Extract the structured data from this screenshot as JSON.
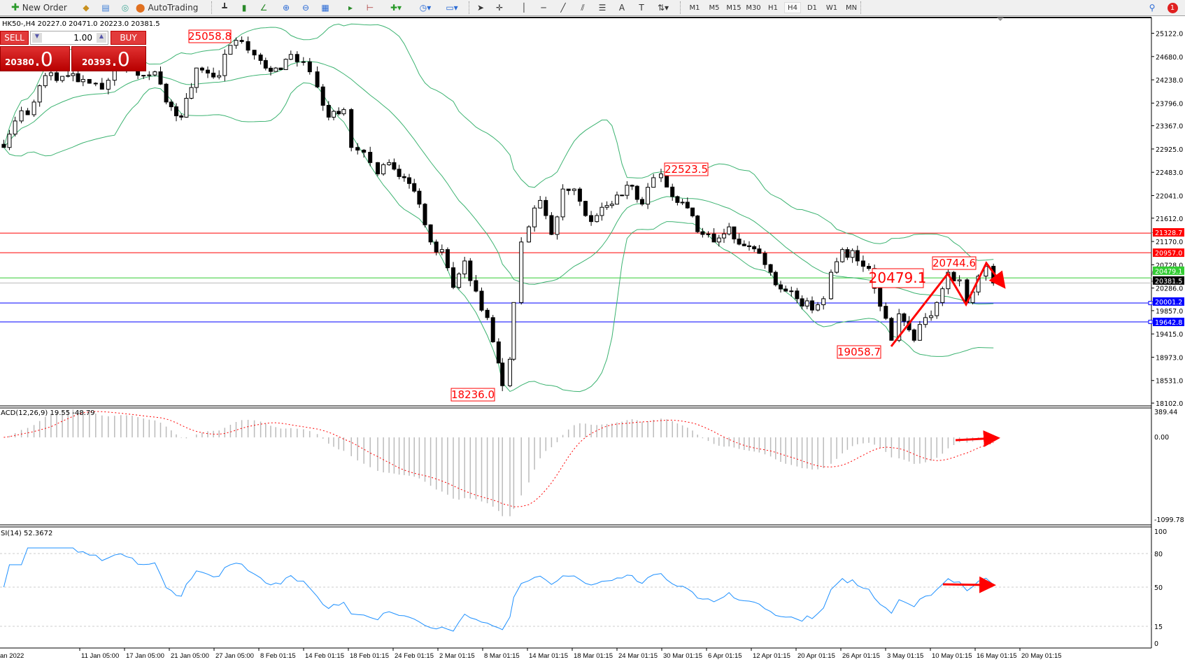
{
  "toolbar": {
    "new_order": "New Order",
    "autotrading": "AutoTrading",
    "timeframes": [
      "M1",
      "M5",
      "M15",
      "M30",
      "H1",
      "H4",
      "D1",
      "W1",
      "MN"
    ],
    "active_timeframe": "H4",
    "notification_count": "1"
  },
  "trade_panel": {
    "sell": "SELL",
    "buy": "BUY",
    "lot": "1.00",
    "sell_price_small": "20380",
    "sell_price_big": ".0",
    "buy_price_small": "20393",
    "buy_price_big": ".0"
  },
  "chart": {
    "symbol_info": "HK50-,H4  20227.0 20471.0 20223.0 20381.5",
    "price_ticks": [
      "25122.0",
      "24680.0",
      "24238.0",
      "23796.0",
      "23367.0",
      "22925.0",
      "22483.0",
      "22041.0",
      "21612.0",
      "21170.0",
      "20728.0",
      "20286.0",
      "19857.0",
      "19415.0",
      "18973.0",
      "18531.0",
      "18102.0"
    ],
    "closes": [
      22954,
      23457,
      23816,
      24318,
      24318,
      24246,
      24060,
      24533,
      24318,
      24390,
      23816,
      23529,
      24462,
      24318,
      24892,
      24964,
      24605,
      24462,
      24720,
      24390,
      24103,
      23529,
      23673,
      22954,
      22667,
      22452,
      22667,
      22380,
      21878,
      21160,
      21016,
      20298,
      20800,
      20227,
      19725,
      18863,
      18432,
      18935,
      20011,
      21160,
      21447,
      21949,
      21303,
      22165,
      22165,
      21662,
      21662,
      21878,
      22237,
      21878,
      22380,
      22452,
      22022,
      21806,
      21303,
      21160,
      21447,
      21088,
      20944,
      20585,
      20227,
      20083,
      19868,
      20083,
      20585,
      21016,
      20800,
      20657,
      19940,
      19294,
      19796,
      19294,
      19725,
      20011,
      20585,
      20442,
      20011,
      20513,
      20700,
      20381.5
    ],
    "levels": [
      {
        "price": "21328.7",
        "color": "#ff0000"
      },
      {
        "price": "20957.0",
        "color": "#ff0000"
      },
      {
        "price": "20479.1",
        "color": "#33cc33"
      },
      {
        "price": "20381.5",
        "color": "#000000"
      },
      {
        "price": "20001.2",
        "color": "#0000ff"
      },
      {
        "price": "19642.8",
        "color": "#0000ff"
      }
    ],
    "annotations": {
      "a1": "25058.8",
      "a2": "22523.5",
      "a3": "18236.0",
      "a4": "19058.7",
      "a5": "20479.1",
      "a6": "20744.6"
    },
    "bollinger_color": "#3cb371",
    "annotation_color": "#ff0000"
  },
  "macd": {
    "label": "ACD(12,26,9) 19.55 -48.79",
    "ticks": [
      "389.44",
      "0.00",
      "-1099.78"
    ]
  },
  "rsi": {
    "label": "SI(14) 52.3672",
    "ticks": [
      "100",
      "80",
      "50",
      "15",
      "0"
    ],
    "color": "#1e90ff"
  },
  "time_axis": [
    "an 2022",
    "11 Jan 05:00",
    "17 Jan 05:00",
    "21 Jan 05:00",
    "27 Jan 05:00",
    "8 Feb 01:15",
    "14 Feb 01:15",
    "18 Feb 01:15",
    "24 Feb 01:15",
    "2 Mar 01:15",
    "8 Mar 01:15",
    "14 Mar 01:15",
    "18 Mar 01:15",
    "24 Mar 01:15",
    "30 Mar 01:15",
    "6 Apr 01:15",
    "12 Apr 01:15",
    "20 Apr 01:15",
    "26 Apr 01:15",
    "3 May 01:15",
    "10 May 01:15",
    "16 May 01:15",
    "20 May 01:15"
  ]
}
